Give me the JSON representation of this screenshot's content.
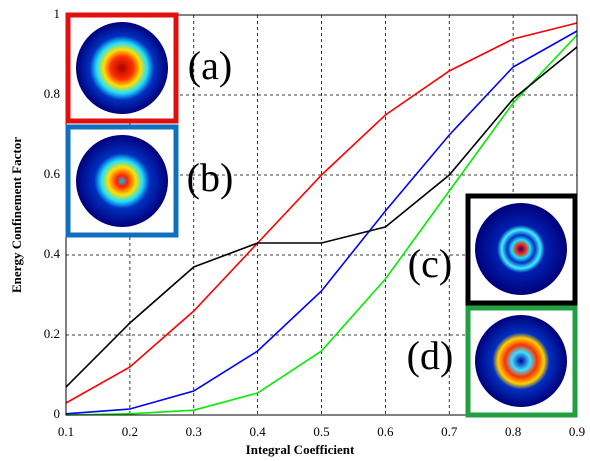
{
  "chart_data": {
    "type": "line",
    "x_label": "Integral Coefficient",
    "y_label": "Energy Confinement Factor",
    "x": [
      0.1,
      0.2,
      0.3,
      0.4,
      0.5,
      0.6,
      0.7,
      0.8,
      0.9
    ],
    "series": [
      {
        "color": "#ff0000",
        "values": [
          0.03,
          0.12,
          0.26,
          0.43,
          0.6,
          0.75,
          0.86,
          0.94,
          0.98
        ]
      },
      {
        "color": "#0000ff",
        "values": [
          0.003,
          0.015,
          0.06,
          0.16,
          0.31,
          0.51,
          0.7,
          0.87,
          0.96
        ]
      },
      {
        "color": "#00ee00",
        "values": [
          0,
          0.003,
          0.012,
          0.055,
          0.16,
          0.34,
          0.56,
          0.78,
          0.95
        ]
      },
      {
        "color": "#000000",
        "values": [
          0.07,
          0.23,
          0.37,
          0.43,
          0.43,
          0.47,
          0.6,
          0.79,
          0.92
        ]
      }
    ],
    "xlim": [
      0.1,
      0.9
    ],
    "xticks": [
      0.1,
      0.2,
      0.3,
      0.4,
      0.5,
      0.6,
      0.7,
      0.8,
      0.9
    ],
    "ylim": [
      0,
      1
    ],
    "yticks": [
      0,
      0.2,
      0.4,
      0.6,
      0.8,
      1
    ],
    "grid": true,
    "annotations": [
      "(a)",
      "(b)",
      "(c)",
      "(d)"
    ]
  }
}
